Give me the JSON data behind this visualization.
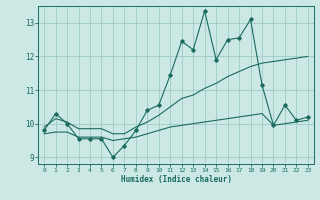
{
  "xlabel": "Humidex (Indice chaleur)",
  "bg_color": "#cce8e4",
  "grid_color": "#9eccc6",
  "line_color": "#1a6b60",
  "xlim": [
    -0.5,
    23.5
  ],
  "ylim": [
    8.8,
    13.5
  ],
  "yticks": [
    9,
    10,
    11,
    12,
    13
  ],
  "xticks": [
    0,
    1,
    2,
    3,
    4,
    5,
    6,
    7,
    8,
    9,
    10,
    11,
    12,
    13,
    14,
    15,
    16,
    17,
    18,
    19,
    20,
    21,
    22,
    23
  ],
  "x_main": [
    0,
    1,
    2,
    3,
    4,
    5,
    6,
    7,
    8,
    9,
    10,
    11,
    12,
    13,
    14,
    15,
    16,
    17,
    18,
    19,
    20,
    21,
    22,
    23
  ],
  "y_main": [
    9.8,
    10.3,
    10.0,
    9.55,
    9.55,
    9.55,
    9.0,
    9.35,
    9.8,
    10.4,
    10.55,
    11.45,
    12.45,
    12.2,
    13.35,
    11.9,
    12.5,
    12.55,
    13.1,
    11.15,
    9.95,
    10.55,
    10.1,
    10.2
  ],
  "x_upper": [
    0,
    1,
    2,
    3,
    4,
    5,
    6,
    7,
    8,
    9,
    10,
    11,
    12,
    13,
    14,
    15,
    16,
    17,
    18,
    19,
    20,
    21,
    22,
    23
  ],
  "y_upper": [
    9.9,
    10.15,
    10.05,
    9.85,
    9.85,
    9.85,
    9.7,
    9.7,
    9.9,
    10.05,
    10.25,
    10.5,
    10.75,
    10.85,
    11.05,
    11.2,
    11.4,
    11.55,
    11.7,
    11.8,
    11.85,
    11.9,
    11.95,
    12.0
  ],
  "x_lower": [
    0,
    1,
    2,
    3,
    4,
    5,
    6,
    7,
    8,
    9,
    10,
    11,
    12,
    13,
    14,
    15,
    16,
    17,
    18,
    19,
    20,
    21,
    22,
    23
  ],
  "y_lower": [
    9.7,
    9.75,
    9.75,
    9.6,
    9.6,
    9.6,
    9.5,
    9.55,
    9.6,
    9.7,
    9.8,
    9.9,
    9.95,
    10.0,
    10.05,
    10.1,
    10.15,
    10.2,
    10.25,
    10.3,
    9.95,
    10.0,
    10.05,
    10.1
  ]
}
